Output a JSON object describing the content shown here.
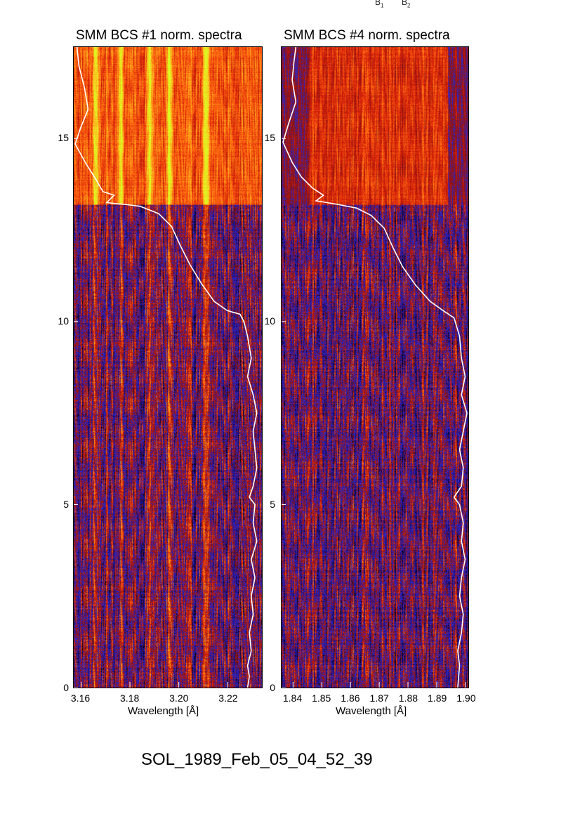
{
  "top_labels": {
    "b1": "B",
    "b1_sub": "1",
    "b2": "B",
    "b2_sub": "2"
  },
  "footer_text": "SOL_1989_Feb_05_04_52_39",
  "chart_data": [
    {
      "type": "heatmap",
      "title": "SMM BCS #1 norm. spectra",
      "xlabel": "Wavelength [Å]",
      "ylabel": "",
      "xlim": [
        3.157,
        3.234
      ],
      "ylim": [
        0,
        17.5
      ],
      "xticks": [
        "3.16",
        "3.18",
        "3.20",
        "3.22"
      ],
      "xtick_values": [
        3.16,
        3.18,
        3.2,
        3.22
      ],
      "yticks": [
        "0",
        "5",
        "10",
        "15"
      ],
      "ytick_values": [
        0,
        5,
        10,
        15
      ],
      "colormap": [
        "#000000",
        "#1a0a7a",
        "#2a2ad8",
        "#8a1010",
        "#d8200a",
        "#ff6a10",
        "#ffc020",
        "#d8ff20"
      ],
      "bright_lines_angstrom": [
        3.166,
        3.176,
        3.188,
        3.196,
        3.211
      ],
      "flare_start_y": 13.2,
      "overlay_curve": {
        "color": "#ffffff",
        "points": [
          [
            0.01,
            17.5
          ],
          [
            0.02,
            17.0
          ],
          [
            0.05,
            16.4
          ],
          [
            0.07,
            15.8
          ],
          [
            0.03,
            15.3
          ],
          [
            0.0,
            14.85
          ],
          [
            0.06,
            14.3
          ],
          [
            0.11,
            13.9
          ],
          [
            0.15,
            13.55
          ],
          [
            0.21,
            13.45
          ],
          [
            0.17,
            13.25
          ],
          [
            0.27,
            13.2
          ],
          [
            0.35,
            13.15
          ],
          [
            0.45,
            12.95
          ],
          [
            0.52,
            12.6
          ],
          [
            0.57,
            12.05
          ],
          [
            0.62,
            11.55
          ],
          [
            0.68,
            11.05
          ],
          [
            0.75,
            10.55
          ],
          [
            0.82,
            10.3
          ],
          [
            0.89,
            10.2
          ],
          [
            0.91,
            10.0
          ],
          [
            0.93,
            9.6
          ],
          [
            0.95,
            9.0
          ],
          [
            0.93,
            8.5
          ],
          [
            0.96,
            8.0
          ],
          [
            0.98,
            7.5
          ],
          [
            0.96,
            7.0
          ],
          [
            0.97,
            6.5
          ],
          [
            0.98,
            6.0
          ],
          [
            0.96,
            5.5
          ],
          [
            0.94,
            5.2
          ],
          [
            0.97,
            5.0
          ],
          [
            0.96,
            4.5
          ],
          [
            0.98,
            4.0
          ],
          [
            0.95,
            3.5
          ],
          [
            0.97,
            3.0
          ],
          [
            0.95,
            2.5
          ],
          [
            0.96,
            2.0
          ],
          [
            0.94,
            1.5
          ],
          [
            0.95,
            1.0
          ],
          [
            0.93,
            0.6
          ],
          [
            0.94,
            0.3
          ],
          [
            0.93,
            0.0
          ]
        ]
      }
    },
    {
      "type": "heatmap",
      "title": "SMM BCS #4 norm. spectra",
      "xlabel": "Wavelength [Å]",
      "ylabel": "",
      "xlim": [
        1.836,
        1.901
      ],
      "ylim": [
        0,
        17.5
      ],
      "xticks": [
        "1.84",
        "1.85",
        "1.86",
        "1.87",
        "1.88",
        "1.89",
        "1.90"
      ],
      "xtick_values": [
        1.84,
        1.85,
        1.86,
        1.87,
        1.88,
        1.89,
        1.9
      ],
      "yticks": [
        "0",
        "5",
        "10",
        "15"
      ],
      "ytick_values": [
        0,
        5,
        10,
        15
      ],
      "colormap": [
        "#000000",
        "#1a0a7a",
        "#2a2ad8",
        "#8a1010",
        "#d8200a",
        "#ff6a10",
        "#ffc020",
        "#d8ff20"
      ],
      "bright_lines_angstrom": [],
      "flare_start_y": 13.2,
      "overlay_curve": {
        "color": "#ffffff",
        "points": [
          [
            0.07,
            17.5
          ],
          [
            0.06,
            17.1
          ],
          [
            0.05,
            16.6
          ],
          [
            0.07,
            16.0
          ],
          [
            0.03,
            15.4
          ],
          [
            0.0,
            14.9
          ],
          [
            0.05,
            14.35
          ],
          [
            0.1,
            13.95
          ],
          [
            0.16,
            13.65
          ],
          [
            0.22,
            13.45
          ],
          [
            0.18,
            13.3
          ],
          [
            0.3,
            13.2
          ],
          [
            0.4,
            13.1
          ],
          [
            0.48,
            12.9
          ],
          [
            0.55,
            12.55
          ],
          [
            0.6,
            12.0
          ],
          [
            0.65,
            11.5
          ],
          [
            0.72,
            11.0
          ],
          [
            0.8,
            10.55
          ],
          [
            0.87,
            10.3
          ],
          [
            0.93,
            10.1
          ],
          [
            0.96,
            9.6
          ],
          [
            0.97,
            9.0
          ],
          [
            0.99,
            8.5
          ],
          [
            0.97,
            8.0
          ],
          [
            1.0,
            7.5
          ],
          [
            0.98,
            7.0
          ],
          [
            0.96,
            6.5
          ],
          [
            0.98,
            6.0
          ],
          [
            0.97,
            5.5
          ],
          [
            0.93,
            5.2
          ],
          [
            0.96,
            5.0
          ],
          [
            0.98,
            4.5
          ],
          [
            0.97,
            4.0
          ],
          [
            0.99,
            3.5
          ],
          [
            0.97,
            3.0
          ],
          [
            0.96,
            2.5
          ],
          [
            0.98,
            2.0
          ],
          [
            0.97,
            1.5
          ],
          [
            0.95,
            1.0
          ],
          [
            0.96,
            0.6
          ],
          [
            0.95,
            0.0
          ]
        ]
      }
    }
  ]
}
